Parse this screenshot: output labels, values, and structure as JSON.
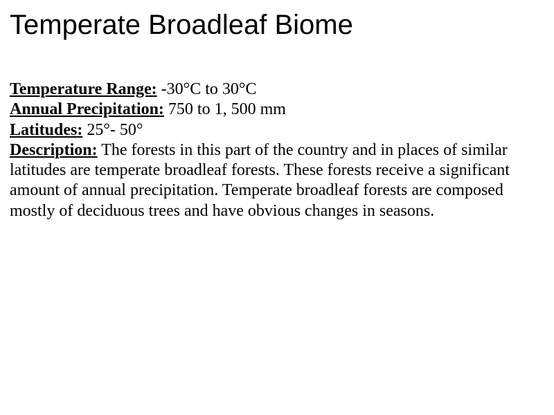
{
  "title": "Temperate Broadleaf Biome",
  "labels": {
    "temperature": "Temperature Range:",
    "precipitation": "Annual Precipitation:",
    "latitudes": "Latitudes:",
    "description": "Description:"
  },
  "values": {
    "temperature": " -30°C to 30°C",
    "precipitation": " 750 to 1, 500 mm",
    "latitudes": " 25°- 50°",
    "description": " The forests in this part of the country and in places of similar latitudes are temperate broadleaf forests.  These forests receive a significant amount of annual precipitation.  Temperate broadleaf forests are composed mostly of deciduous trees and have obvious changes in seasons."
  },
  "style": {
    "title_fontsize": 40,
    "body_fontsize": 24,
    "title_font": "Arial",
    "body_font": "Times New Roman",
    "text_color": "#000000",
    "background_color": "#ffffff"
  }
}
